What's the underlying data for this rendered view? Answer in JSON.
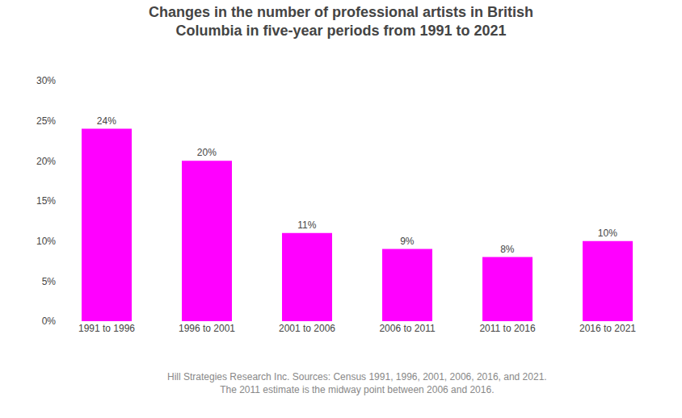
{
  "chart_data": {
    "type": "bar",
    "title": "Changes in the number of professional artists in British\nColumbia in five-year periods from 1991 to 2021",
    "categories": [
      "1991 to 1996",
      "1996 to 2001",
      "2001 to 2006",
      "2006 to 2011",
      "2011 to 2016",
      "2016 to 2021"
    ],
    "values": [
      24,
      20,
      11,
      9,
      8,
      10
    ],
    "value_labels": [
      "24%",
      "20%",
      "11%",
      "9%",
      "8%",
      "10%"
    ],
    "data_labels": true,
    "color": "#FF00FF",
    "ylim": [
      0,
      30
    ],
    "yticks": [
      {
        "value": 0,
        "label": "0%"
      },
      {
        "value": 5,
        "label": "5%"
      },
      {
        "value": 10,
        "label": "10%"
      },
      {
        "value": 15,
        "label": "15%"
      },
      {
        "value": 20,
        "label": "20%"
      },
      {
        "value": 25,
        "label": "25%"
      },
      {
        "value": 30,
        "label": "30%"
      }
    ],
    "grid": false,
    "annotations": [
      "Hill Strategies Research Inc. Sources: Census 1991, 1996, 2001, 2006, 2016, and 2021.",
      "The 2011 estimate is the midway point between 2006 and 2016."
    ]
  }
}
